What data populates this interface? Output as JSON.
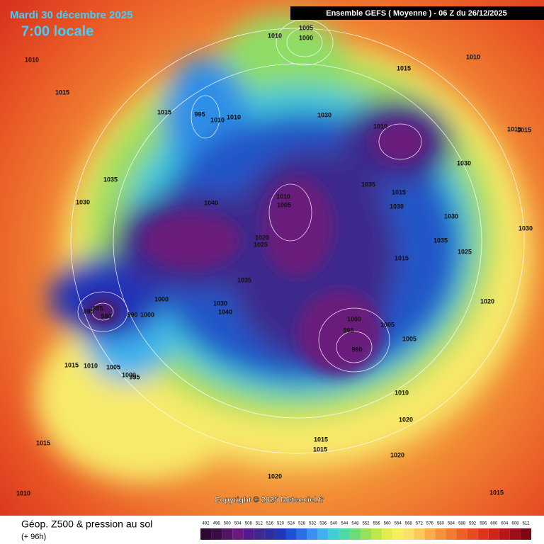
{
  "header": {
    "date": "Mardi 30 décembre 2025",
    "time": "7:00 locale",
    "run": "Ensemble GEFS  ( Moyenne )  -  06 Z du 26/12/2025"
  },
  "copyright": "Copyright © 2025 Meteociel.fr",
  "footer": {
    "title": "Géop. Z500 & pression au sol",
    "lead": "(+ 96h)"
  },
  "isobar_labels": [
    "1010",
    "1015",
    "1015",
    "995",
    "1010",
    "1010",
    "1010",
    "1005",
    "1000",
    "1015",
    "1010",
    "1030",
    "1010",
    "1030",
    "1035",
    "1015",
    "1030",
    "1030",
    "1035",
    "1025",
    "1015",
    "1010",
    "1005",
    "1020",
    "1025",
    "1035",
    "1030",
    "1040",
    "1035",
    "1030",
    "1040",
    "1000",
    "995",
    "985",
    "980",
    "990",
    "1000",
    "1000",
    "995",
    "990",
    "1005",
    "1005",
    "1020",
    "1010",
    "1020",
    "1015",
    "1015",
    "1020",
    "1020",
    "1015",
    "1010",
    "1015",
    "1015",
    "1010",
    "1005",
    "1000",
    "995",
    "1015",
    "1030",
    "1015"
  ],
  "scale": {
    "values": [
      492,
      496,
      500,
      504,
      508,
      512,
      516,
      520,
      524,
      528,
      532,
      536,
      540,
      544,
      548,
      552,
      556,
      560,
      564,
      568,
      572,
      576,
      580,
      584,
      588,
      592,
      596,
      600,
      604,
      608,
      612
    ],
    "colors": [
      "#2a0a2e",
      "#3b0d45",
      "#531463",
      "#6a1a7c",
      "#551a8b",
      "#3d2a8c",
      "#2e2f9a",
      "#2236b8",
      "#1f4fd6",
      "#2b6ee8",
      "#3b8ff0",
      "#3fb2ee",
      "#3ecfd6",
      "#4cd9a8",
      "#6ddc78",
      "#96e05a",
      "#bfe64a",
      "#e2ec4a",
      "#f7ee5c",
      "#fbe067",
      "#fbc95a",
      "#f9ad47",
      "#f6933a",
      "#f27a31",
      "#ee6029",
      "#e84a24",
      "#df3420",
      "#cf241c",
      "#b8171a",
      "#9c0e18",
      "#7e0814"
    ]
  }
}
